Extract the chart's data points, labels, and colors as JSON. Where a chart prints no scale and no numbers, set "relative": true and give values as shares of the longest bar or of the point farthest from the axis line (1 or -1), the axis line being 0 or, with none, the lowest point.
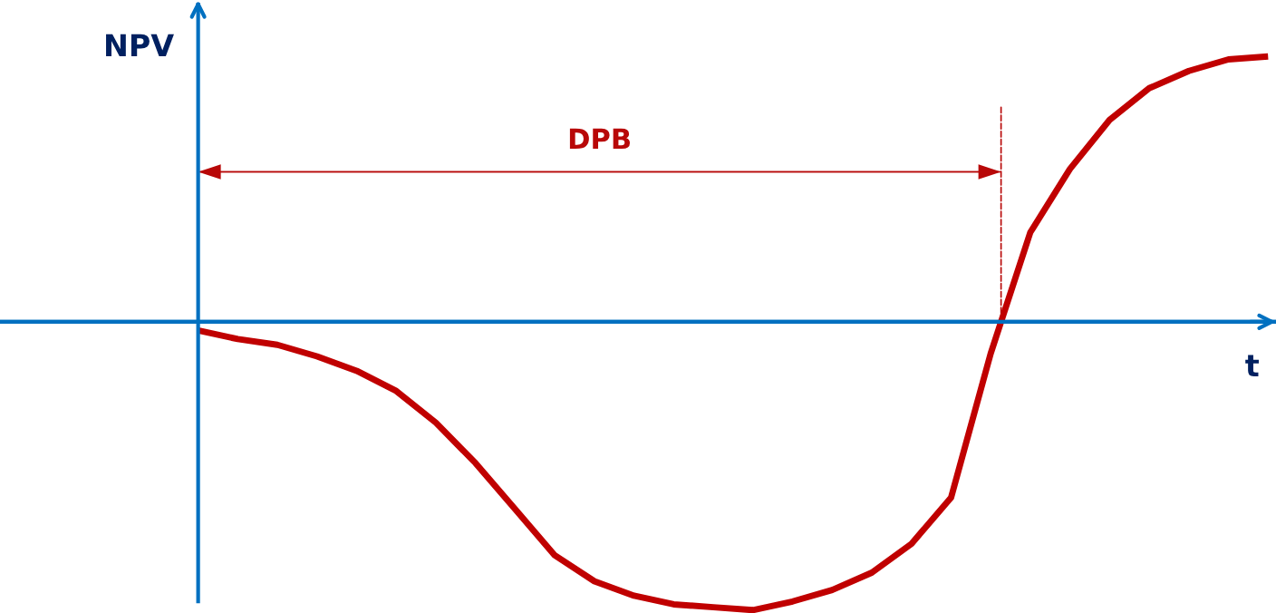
{
  "chart_data": {
    "type": "line",
    "relative": true,
    "ylabel": "NPV",
    "xlabel": "t",
    "categories": [
      null,
      null,
      null,
      null,
      null,
      null,
      null,
      null,
      null,
      null,
      null,
      null,
      null,
      null,
      null,
      null,
      null,
      null,
      null,
      null,
      null,
      null,
      null,
      null,
      null,
      null,
      null,
      null
    ],
    "series": [
      {
        "color": "#c00000",
        "values": [
          -0.03,
          -0.06,
          -0.08,
          -0.12,
          -0.17,
          -0.24,
          -0.35,
          -0.49,
          -0.65,
          -0.81,
          -0.9,
          -0.95,
          -0.98,
          -0.99,
          -1.0,
          -0.97,
          -0.93,
          -0.87,
          -0.77,
          -0.61,
          -0.11,
          0.31,
          0.53,
          0.7,
          0.81,
          0.87,
          0.91,
          0.92
        ]
      }
    ],
    "annotations": [
      "DPB"
    ],
    "ref_lines": [
      {
        "axis": "y",
        "value": 0,
        "color": "#0070c0"
      }
    ],
    "marker": "none",
    "line_style": "solid",
    "legend": false
  }
}
